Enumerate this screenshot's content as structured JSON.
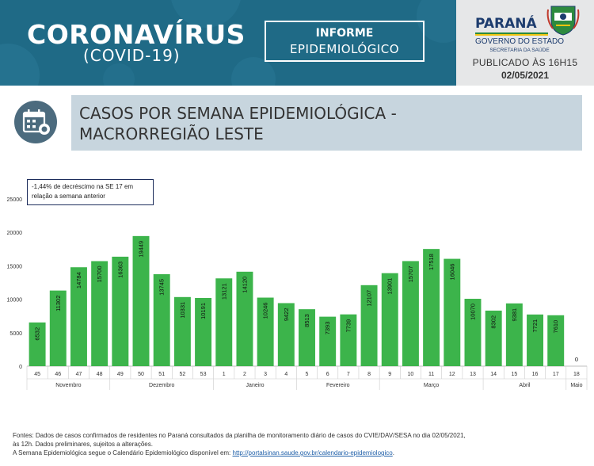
{
  "header": {
    "title": "CORONAVÍRUS",
    "subtitle": "(COVID-19)",
    "informe_line1": "INFORME",
    "informe_line2": "EPIDEMIOLÓGICO"
  },
  "gov": {
    "name": "PARANÁ",
    "sub": "GOVERNO DO ESTADO",
    "dept": "SECRETARIA DA SAÚDE",
    "published": "PUBLICADO ÀS 16H15",
    "date": "02/05/2021"
  },
  "section": {
    "title_line1": "CASOS POR SEMANA EPIDEMIOLÓGICA -",
    "title_line2": "MACRORREGIÃO LESTE",
    "icon": "calendar-icon"
  },
  "annotation": {
    "line1": "-1,44% de decréscimo na SE 17 em",
    "line2": "relação a semana anterior"
  },
  "chart_data": {
    "type": "bar",
    "categories": [
      "45",
      "46",
      "47",
      "48",
      "49",
      "50",
      "51",
      "52",
      "53",
      "1",
      "2",
      "3",
      "4",
      "5",
      "6",
      "7",
      "8",
      "9",
      "10",
      "11",
      "12",
      "13",
      "14",
      "15",
      "16",
      "17",
      "18"
    ],
    "values": [
      6532,
      11302,
      14784,
      15700,
      16363,
      19449,
      13745,
      10331,
      10191,
      13121,
      14120,
      10246,
      9422,
      8513,
      7393,
      7739,
      12107,
      13901,
      15707,
      17518,
      16046,
      10070,
      8302,
      9381,
      7721,
      7610,
      0
    ],
    "value_labels": [
      "6532",
      "11302",
      "14784",
      "15700",
      "16363",
      "19449",
      "13745",
      "10331",
      "10191",
      "13121",
      "14120",
      "10246",
      "9422",
      "8513",
      "7393",
      "7739",
      "12107",
      "13901",
      "15707",
      "17518",
      "16046",
      "10070",
      "8302",
      "9381",
      "7721",
      "7610",
      "0"
    ],
    "months": [
      {
        "label": "Novembro",
        "start": 0,
        "end": 3
      },
      {
        "label": "Dezembro",
        "start": 4,
        "end": 8
      },
      {
        "label": "Janeiro",
        "start": 9,
        "end": 12
      },
      {
        "label": "Fevereiro",
        "start": 13,
        "end": 16
      },
      {
        "label": "Março",
        "start": 17,
        "end": 21
      },
      {
        "label": "Abril",
        "start": 22,
        "end": 25
      },
      {
        "label": "Maio",
        "start": 26,
        "end": 26
      }
    ],
    "yticks": [
      "0",
      "5000",
      "10000",
      "15000",
      "20000",
      "25000"
    ],
    "ylim": [
      0,
      25000
    ],
    "grid": false,
    "bar_color": "#3cb44b",
    "title": "",
    "xlabel": "",
    "ylabel": ""
  },
  "footer": {
    "line1": "Fontes: Dados de casos confirmados de residentes no Paraná consultados da planilha de monitoramento diário de casos do CVIE/DAV/SESA no dia 02/05/2021,",
    "line2": "às 12h. Dados preliminares, sujeitos a alterações.",
    "line3": "A Semana Epidemiológica segue o Calendário Epidemiológico disponível em: ",
    "link": "http://portalsinan.saude.gov.br/calendario-epidemiologico",
    "line3_end": "."
  },
  "colors": {
    "banner": "#1f6a86",
    "panel": "#e6e7e8",
    "section_box": "#c7d5de",
    "icon_circle": "#4c6b7e"
  }
}
